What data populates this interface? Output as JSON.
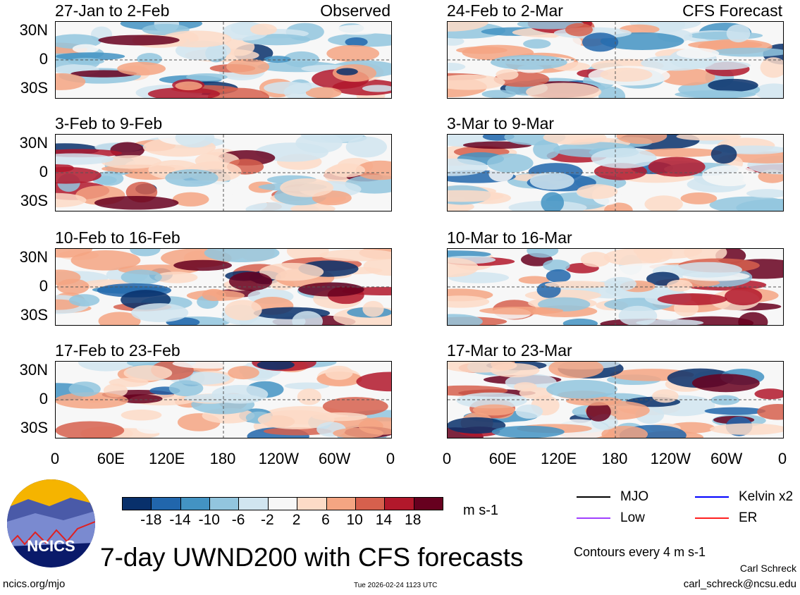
{
  "chart_data": {
    "type": "heatmap",
    "title": "7-day UWND200 with CFS forecasts",
    "units": "m s-1",
    "contour_note": "Contours every 4 m s-1",
    "column_labels": {
      "left": "Observed",
      "right": "CFS Forecast"
    },
    "panels": [
      {
        "label": "27-Jan to 2-Feb",
        "column": "Observed"
      },
      {
        "label": "3-Feb to 9-Feb",
        "column": "Observed"
      },
      {
        "label": "10-Feb to 16-Feb",
        "column": "Observed"
      },
      {
        "label": "17-Feb to 23-Feb",
        "column": "Observed"
      },
      {
        "label": "24-Feb to 2-Mar",
        "column": "CFS Forecast"
      },
      {
        "label": "3-Mar to 9-Mar",
        "column": "CFS Forecast"
      },
      {
        "label": "10-Mar to 16-Mar",
        "column": "CFS Forecast"
      },
      {
        "label": "17-Mar to 23-Mar",
        "column": "CFS Forecast"
      }
    ],
    "lat_ticks": [
      "30N",
      "0",
      "30S"
    ],
    "lon_ticks": [
      "0",
      "60E",
      "120E",
      "180",
      "120W",
      "60W",
      "0"
    ],
    "colorbar": {
      "ticks": [
        "-18",
        "-14",
        "-10",
        "-6",
        "-2",
        "2",
        "6",
        "10",
        "14",
        "18"
      ],
      "colors": [
        "#08306b",
        "#2166ac",
        "#4393c3",
        "#92c5de",
        "#d1e5f0",
        "#f7f7f7",
        "#fddbc7",
        "#f4a582",
        "#d6604d",
        "#b2182b",
        "#67001f"
      ]
    },
    "legend": [
      {
        "label": "MJO",
        "color": "#000000"
      },
      {
        "label": "Kelvin x2",
        "color": "#0000ff"
      },
      {
        "label": "Low",
        "color": "#a040ff"
      },
      {
        "label": "ER",
        "color": "#ff2020"
      }
    ]
  },
  "logo": {
    "text": "NCICS"
  },
  "footer": {
    "url": "ncics.org/mjo",
    "timestamp": "Tue 2026-02-24 1123 UTC",
    "author": "Carl Schreck",
    "email": "carl_schreck@ncsu.edu"
  }
}
